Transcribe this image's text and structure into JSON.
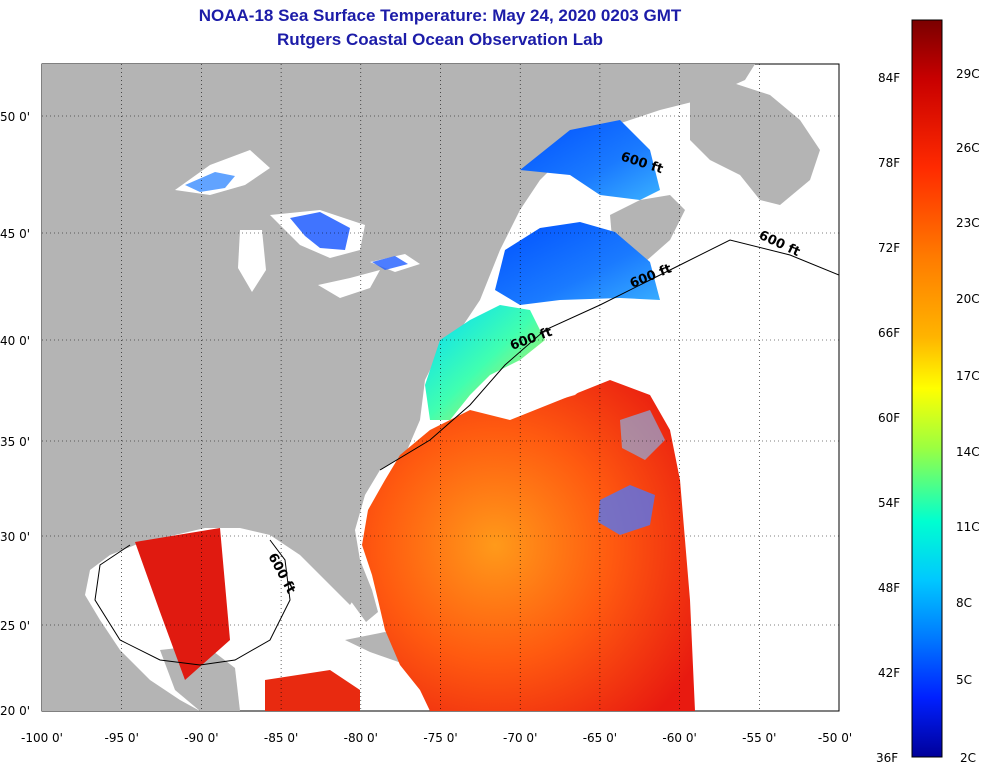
{
  "titles": {
    "line1": "NOAA-18 Sea Surface Temperature:  May 24, 2020 0203 GMT",
    "line2": "Rutgers Coastal Ocean Observation Lab"
  },
  "map": {
    "lon_range": [
      -100,
      -50
    ],
    "lat_range": [
      20,
      52
    ],
    "lon_ticks": [
      "-100 0'",
      "-95 0'",
      "-90 0'",
      "-85 0'",
      "-80 0'",
      "-75 0'",
      "-70 0'",
      "-65 0'",
      "-60 0'",
      "-55 0'",
      "-50 0'"
    ],
    "lat_ticks": [
      "50 0'",
      "45 0'",
      "40 0'",
      "35 0'",
      "30 0'",
      "25 0'",
      "20 0'"
    ],
    "contour_labels": [
      "600 ft",
      "600 ft",
      "600 ft",
      "600 ft",
      "600 ft"
    ],
    "land_color": "#b4b4b4",
    "no_data_color": "#ffffff",
    "grid": "dotted"
  },
  "colorbar": {
    "fahrenheit_labels": [
      "84F",
      "78F",
      "72F",
      "66F",
      "60F",
      "54F",
      "48F",
      "42F",
      "36F"
    ],
    "celsius_labels": [
      "29C",
      "26C",
      "23C",
      "20C",
      "17C",
      "14C",
      "11C",
      "8C",
      "5C",
      "2C"
    ],
    "colors_top_to_bottom": [
      "#7a0000",
      "#c80000",
      "#ff2a00",
      "#ff7a00",
      "#ffb400",
      "#ffff00",
      "#9cff40",
      "#00ffd0",
      "#00c8ff",
      "#0078ff",
      "#0020ff",
      "#00009a"
    ]
  }
}
